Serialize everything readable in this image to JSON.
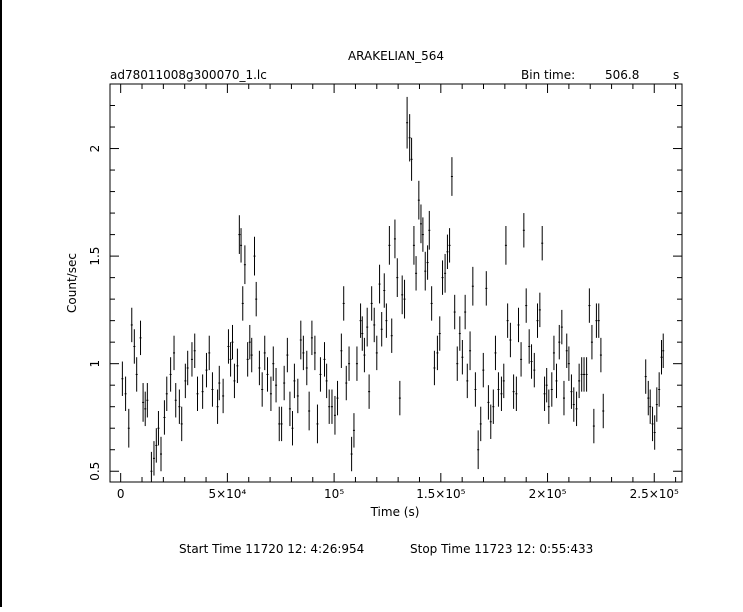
{
  "chart_data": {
    "type": "scatter",
    "title": "ARAKELIAN_564",
    "file_label": "ad78011008g300070_1.lc",
    "bin_time_label": "Bin time:",
    "bin_time_value": "506.8",
    "bin_time_unit": "s",
    "xlabel": "Time (s)",
    "ylabel": "Count/sec",
    "xlim": [
      -5000,
      263000
    ],
    "ylim": [
      0.45,
      2.3
    ],
    "x_ticks": [
      {
        "value": 0,
        "label": "0"
      },
      {
        "value": 50000,
        "label": "5×10⁴"
      },
      {
        "value": 100000,
        "label": "10⁵"
      },
      {
        "value": 150000,
        "label": "1.5×10⁵"
      },
      {
        "value": 200000,
        "label": "2×10⁵"
      },
      {
        "value": 250000,
        "label": "2.5×10⁵"
      }
    ],
    "y_ticks": [
      {
        "value": 0.5,
        "label": "0.5"
      },
      {
        "value": 1,
        "label": "1"
      },
      {
        "value": 1.5,
        "label": "1.5"
      },
      {
        "value": 2,
        "label": "2"
      }
    ],
    "grid": false,
    "series": [
      {
        "points": [
          [
            800,
            0.93,
            0.08
          ],
          [
            2300,
            0.86,
            0.08
          ],
          [
            3800,
            0.7,
            0.09
          ],
          [
            5200,
            1.18,
            0.08
          ],
          [
            6400,
            1.08,
            0.08
          ],
          [
            7500,
            0.95,
            0.08
          ],
          [
            9300,
            1.12,
            0.08
          ],
          [
            10500,
            0.82,
            0.09
          ],
          [
            11500,
            0.79,
            0.08
          ],
          [
            12500,
            0.83,
            0.08
          ],
          [
            14400,
            0.5,
            0.09
          ],
          [
            15600,
            0.56,
            0.08
          ],
          [
            16700,
            0.62,
            0.08
          ],
          [
            17700,
            0.7,
            0.08
          ],
          [
            18900,
            0.58,
            0.08
          ],
          [
            20500,
            0.75,
            0.08
          ],
          [
            21600,
            0.86,
            0.08
          ],
          [
            23400,
            0.95,
            0.08
          ],
          [
            25000,
            1.05,
            0.08
          ],
          [
            25800,
            0.83,
            0.08
          ],
          [
            27500,
            0.8,
            0.08
          ],
          [
            28600,
            0.72,
            0.08
          ],
          [
            30300,
            0.92,
            0.08
          ],
          [
            31400,
            0.98,
            0.08
          ],
          [
            33400,
            1.02,
            0.08
          ],
          [
            34700,
            1.06,
            0.08
          ],
          [
            36000,
            0.86,
            0.08
          ],
          [
            38400,
            0.87,
            0.08
          ],
          [
            40200,
            0.97,
            0.08
          ],
          [
            41500,
            1.05,
            0.08
          ],
          [
            43000,
            0.88,
            0.08
          ],
          [
            45400,
            0.8,
            0.08
          ],
          [
            46200,
            0.91,
            0.08
          ],
          [
            48000,
            0.85,
            0.08
          ],
          [
            50500,
            1.08,
            0.08
          ],
          [
            51500,
            1.02,
            0.08
          ],
          [
            52400,
            1.1,
            0.08
          ],
          [
            53300,
            0.92,
            0.08
          ],
          [
            54700,
            0.99,
            0.08
          ],
          [
            55600,
            1.6,
            0.09
          ],
          [
            56400,
            1.55,
            0.08
          ],
          [
            57200,
            1.28,
            0.08
          ],
          [
            58200,
            1.46,
            0.09
          ],
          [
            59500,
            1.02,
            0.08
          ],
          [
            60500,
            1.1,
            0.08
          ],
          [
            61400,
            1.04,
            0.08
          ],
          [
            62700,
            1.5,
            0.09
          ],
          [
            63500,
            1.3,
            0.08
          ],
          [
            65000,
            0.98,
            0.08
          ],
          [
            66300,
            0.88,
            0.08
          ],
          [
            67500,
            1.05,
            0.08
          ],
          [
            68800,
            0.95,
            0.08
          ],
          [
            70400,
            0.86,
            0.08
          ],
          [
            71500,
            1.0,
            0.08
          ],
          [
            72800,
            0.9,
            0.08
          ],
          [
            74300,
            0.72,
            0.08
          ],
          [
            75400,
            0.72,
            0.08
          ],
          [
            76600,
            0.91,
            0.08
          ],
          [
            78100,
            1.04,
            0.08
          ],
          [
            79300,
            0.79,
            0.08
          ],
          [
            80500,
            0.7,
            0.08
          ],
          [
            81400,
            0.92,
            0.08
          ],
          [
            83000,
            0.85,
            0.08
          ],
          [
            84400,
            1.11,
            0.09
          ],
          [
            85600,
            1.05,
            0.08
          ],
          [
            87200,
            0.98,
            0.08
          ],
          [
            88300,
            0.78,
            0.09
          ],
          [
            89600,
            1.12,
            0.08
          ],
          [
            91000,
            1.05,
            0.08
          ],
          [
            92200,
            0.72,
            0.09
          ],
          [
            93600,
            0.95,
            0.08
          ],
          [
            95500,
            1.02,
            0.08
          ],
          [
            96500,
            0.92,
            0.08
          ],
          [
            97700,
            0.8,
            0.08
          ],
          [
            99000,
            0.8,
            0.08
          ],
          [
            100400,
            0.76,
            0.09
          ],
          [
            101600,
            0.84,
            0.08
          ],
          [
            103400,
            1.06,
            0.08
          ],
          [
            104500,
            1.28,
            0.08
          ],
          [
            105700,
            0.91,
            0.08
          ],
          [
            107000,
            1.0,
            0.08
          ],
          [
            108200,
            0.58,
            0.08
          ],
          [
            109300,
            0.69,
            0.08
          ],
          [
            110700,
            1.0,
            0.08
          ],
          [
            112400,
            1.2,
            0.08
          ],
          [
            113200,
            1.14,
            0.08
          ],
          [
            114200,
            1.04,
            0.08
          ],
          [
            115500,
            1.17,
            0.09
          ],
          [
            116400,
            0.87,
            0.08
          ],
          [
            117600,
            1.28,
            0.08
          ],
          [
            118800,
            1.18,
            0.08
          ],
          [
            120000,
            1.05,
            0.08
          ],
          [
            121300,
            1.37,
            0.09
          ],
          [
            122300,
            1.16,
            0.08
          ],
          [
            123500,
            1.34,
            0.08
          ],
          [
            124500,
            1.2,
            0.08
          ],
          [
            125900,
            1.55,
            0.09
          ],
          [
            127000,
            1.13,
            0.08
          ],
          [
            128500,
            1.58,
            0.09
          ],
          [
            129600,
            1.4,
            0.09
          ],
          [
            130800,
            0.84,
            0.08
          ],
          [
            131900,
            1.32,
            0.09
          ],
          [
            133000,
            1.3,
            0.09
          ],
          [
            134200,
            2.12,
            0.12
          ],
          [
            135400,
            2.05,
            0.11
          ],
          [
            136300,
            1.95,
            0.1
          ],
          [
            137400,
            1.55,
            0.09
          ],
          [
            138400,
            1.42,
            0.08
          ],
          [
            139700,
            1.76,
            0.09
          ],
          [
            140700,
            1.65,
            0.09
          ],
          [
            141600,
            1.6,
            0.08
          ],
          [
            142700,
            1.43,
            0.09
          ],
          [
            143800,
            1.47,
            0.08
          ],
          [
            144600,
            1.62,
            0.09
          ],
          [
            145700,
            1.28,
            0.08
          ],
          [
            147000,
            0.98,
            0.08
          ],
          [
            148400,
            1.05,
            0.08
          ],
          [
            149500,
            1.14,
            0.08
          ],
          [
            150800,
            1.4,
            0.08
          ],
          [
            152000,
            1.42,
            0.09
          ],
          [
            153100,
            1.52,
            0.08
          ],
          [
            154100,
            1.55,
            0.08
          ],
          [
            155200,
            1.87,
            0.09
          ],
          [
            156500,
            1.24,
            0.08
          ],
          [
            157700,
            1.0,
            0.08
          ],
          [
            158900,
            1.14,
            0.08
          ],
          [
            160100,
            1.03,
            0.08
          ],
          [
            161400,
            1.24,
            0.08
          ],
          [
            162400,
            0.92,
            0.08
          ],
          [
            163700,
            1.06,
            0.09
          ],
          [
            165000,
            1.36,
            0.09
          ],
          [
            166200,
            0.88,
            0.08
          ],
          [
            167500,
            0.6,
            0.09
          ],
          [
            168700,
            0.72,
            0.08
          ],
          [
            169900,
            0.97,
            0.08
          ],
          [
            171300,
            1.35,
            0.08
          ],
          [
            172300,
            0.82,
            0.08
          ],
          [
            173400,
            0.73,
            0.08
          ],
          [
            174600,
            0.8,
            0.08
          ],
          [
            175600,
            1.05,
            0.08
          ],
          [
            177000,
            0.88,
            0.08
          ],
          [
            178400,
            0.86,
            0.08
          ],
          [
            179500,
            0.92,
            0.08
          ],
          [
            180500,
            1.55,
            0.09
          ],
          [
            181300,
            1.2,
            0.08
          ],
          [
            182600,
            1.11,
            0.08
          ],
          [
            184100,
            0.87,
            0.08
          ],
          [
            185400,
            0.86,
            0.08
          ],
          [
            186400,
            1.18,
            0.08
          ],
          [
            187600,
            1.02,
            0.08
          ],
          [
            188900,
            1.62,
            0.08
          ],
          [
            190000,
            1.27,
            0.08
          ],
          [
            191400,
            1.08,
            0.08
          ],
          [
            192500,
            1.01,
            0.08
          ],
          [
            193800,
            0.97,
            0.08
          ],
          [
            195300,
            1.2,
            0.08
          ],
          [
            196400,
            1.25,
            0.08
          ],
          [
            197500,
            1.56,
            0.08
          ],
          [
            198600,
            0.86,
            0.08
          ],
          [
            199600,
            0.9,
            0.08
          ],
          [
            200600,
            0.8,
            0.08
          ],
          [
            202000,
            0.88,
            0.08
          ],
          [
            203000,
            1.05,
            0.08
          ],
          [
            204200,
            0.92,
            0.08
          ],
          [
            205500,
            1.1,
            0.08
          ],
          [
            206700,
            1.17,
            0.08
          ],
          [
            207700,
            0.84,
            0.08
          ],
          [
            209000,
            1.06,
            0.08
          ],
          [
            210000,
            1.0,
            0.08
          ],
          [
            211200,
            0.87,
            0.08
          ],
          [
            212300,
            0.81,
            0.08
          ],
          [
            213600,
            0.79,
            0.08
          ],
          [
            214800,
            0.92,
            0.08
          ],
          [
            216000,
            0.95,
            0.08
          ],
          [
            217100,
            0.95,
            0.08
          ],
          [
            218300,
            0.95,
            0.08
          ],
          [
            219600,
            1.27,
            0.08
          ],
          [
            220800,
            1.1,
            0.08
          ],
          [
            221700,
            0.71,
            0.08
          ],
          [
            222900,
            1.2,
            0.08
          ],
          [
            224000,
            1.2,
            0.08
          ],
          [
            225000,
            1.04,
            0.08
          ],
          [
            226100,
            0.78,
            0.08
          ],
          [
            246000,
            0.94,
            0.08
          ],
          [
            247200,
            0.84,
            0.08
          ],
          [
            248100,
            0.8,
            0.08
          ],
          [
            249200,
            0.72,
            0.08
          ],
          [
            250200,
            0.68,
            0.08
          ],
          [
            251200,
            0.81,
            0.08
          ],
          [
            252300,
            0.88,
            0.08
          ],
          [
            253400,
            1.03,
            0.08
          ],
          [
            254200,
            1.06,
            0.08
          ]
        ]
      }
    ]
  },
  "footer": {
    "start_label": "Start Time 11720 12: 4:26:954",
    "stop_label": "Stop Time 11723 12: 0:55:433"
  }
}
